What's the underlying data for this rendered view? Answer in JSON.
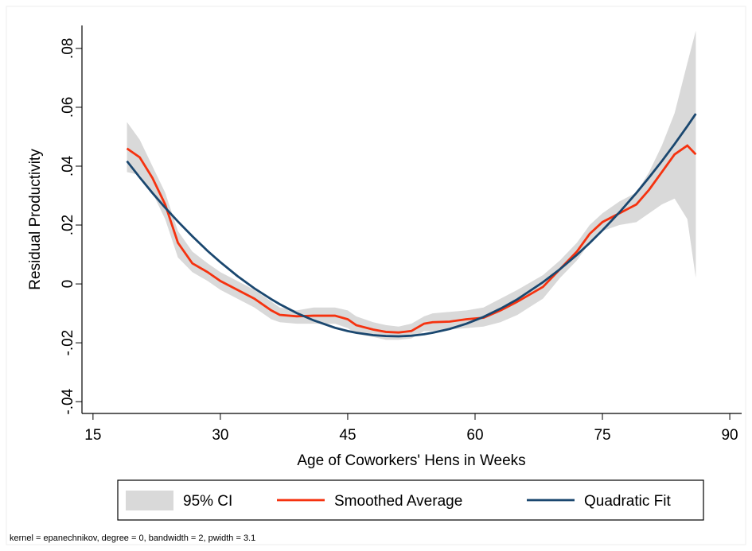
{
  "chart_data": {
    "type": "line",
    "x_label": "Age of Coworkers' Hens in Weeks",
    "y_label": "Residual Productivity",
    "note": "kernel = epanechnikov, degree = 0, bandwidth = 2, pwidth = 3.1",
    "xlim": [
      13.7,
      91.4
    ],
    "ylim": [
      -0.044,
      0.0878
    ],
    "xticks": [
      15,
      30,
      45,
      60,
      75,
      90
    ],
    "yticks": [
      {
        "value": -0.04,
        "label": "-.04"
      },
      {
        "value": -0.02,
        "label": "-.02"
      },
      0,
      {
        "value": 0.02,
        "label": ".02"
      },
      {
        "value": 0.04,
        "label": ".04"
      },
      {
        "value": 0.06,
        "label": ".06"
      },
      {
        "value": 0.08,
        "label": ".08"
      }
    ],
    "grid": false,
    "legend": "bottom",
    "x": [
      19,
      20.5,
      22,
      23.5,
      25,
      26.7,
      28.5,
      30,
      32,
      34,
      36,
      37,
      39,
      41,
      43.5,
      45,
      46,
      48,
      49.5,
      51,
      52.5,
      54,
      55,
      57,
      59,
      61,
      63,
      65,
      68,
      70,
      72,
      73.5,
      75,
      77,
      79,
      80.5,
      82,
      83.5,
      85,
      86
    ],
    "series": [
      {
        "name": "95% CI",
        "color": "#d9d9d9",
        "kind": "band",
        "upper": [
          0.055,
          0.049,
          0.04,
          0.031,
          0.018,
          0.011,
          0.007,
          0.004,
          0.001,
          -0.002,
          -0.006,
          -0.008,
          -0.009,
          -0.008,
          -0.008,
          -0.009,
          -0.011,
          -0.013,
          -0.014,
          -0.0145,
          -0.0135,
          -0.011,
          -0.01,
          -0.0095,
          -0.009,
          -0.008,
          -0.005,
          -0.002,
          0.003,
          0.008,
          0.014,
          0.02,
          0.024,
          0.028,
          0.031,
          0.038,
          0.047,
          0.058,
          0.075,
          0.086
        ],
        "lower": [
          0.038,
          0.037,
          0.031,
          0.022,
          0.009,
          0.004,
          0.001,
          -0.002,
          -0.005,
          -0.008,
          -0.012,
          -0.013,
          -0.0135,
          -0.0135,
          -0.0135,
          -0.015,
          -0.017,
          -0.018,
          -0.019,
          -0.019,
          -0.0185,
          -0.016,
          -0.016,
          -0.0155,
          -0.015,
          -0.0145,
          -0.013,
          -0.0105,
          -0.005,
          0.002,
          0.008,
          0.014,
          0.018,
          0.02,
          0.021,
          0.024,
          0.027,
          0.029,
          0.022,
          0.002
        ]
      },
      {
        "name": "Smoothed Average",
        "color": "#f5320f",
        "values": [
          0.046,
          0.043,
          0.036,
          0.027,
          0.014,
          0.007,
          0.004,
          0.001,
          -0.002,
          -0.005,
          -0.009,
          -0.0105,
          -0.011,
          -0.0108,
          -0.0108,
          -0.012,
          -0.014,
          -0.0155,
          -0.0163,
          -0.0165,
          -0.016,
          -0.0135,
          -0.013,
          -0.0128,
          -0.012,
          -0.0115,
          -0.009,
          -0.006,
          -0.001,
          0.005,
          0.011,
          0.017,
          0.021,
          0.024,
          0.027,
          0.032,
          0.038,
          0.044,
          0.047,
          0.044
        ]
      },
      {
        "name": "Quadratic Fit",
        "color": "#1a476f",
        "values": [
          0.0417,
          0.0362,
          0.0309,
          0.0259,
          0.0212,
          0.0162,
          0.0112,
          0.0074,
          0.0027,
          -0.0015,
          -0.0052,
          -0.0069,
          -0.0099,
          -0.0124,
          -0.0149,
          -0.016,
          -0.0166,
          -0.0174,
          -0.0177,
          -0.0178,
          -0.0176,
          -0.0171,
          -0.0166,
          -0.0153,
          -0.0135,
          -0.0112,
          -0.0084,
          -0.0052,
          0.0006,
          0.005,
          0.0099,
          0.0139,
          0.0182,
          0.0243,
          0.0309,
          0.0362,
          0.0417,
          0.0475,
          0.0536,
          0.0578
        ]
      }
    ]
  }
}
